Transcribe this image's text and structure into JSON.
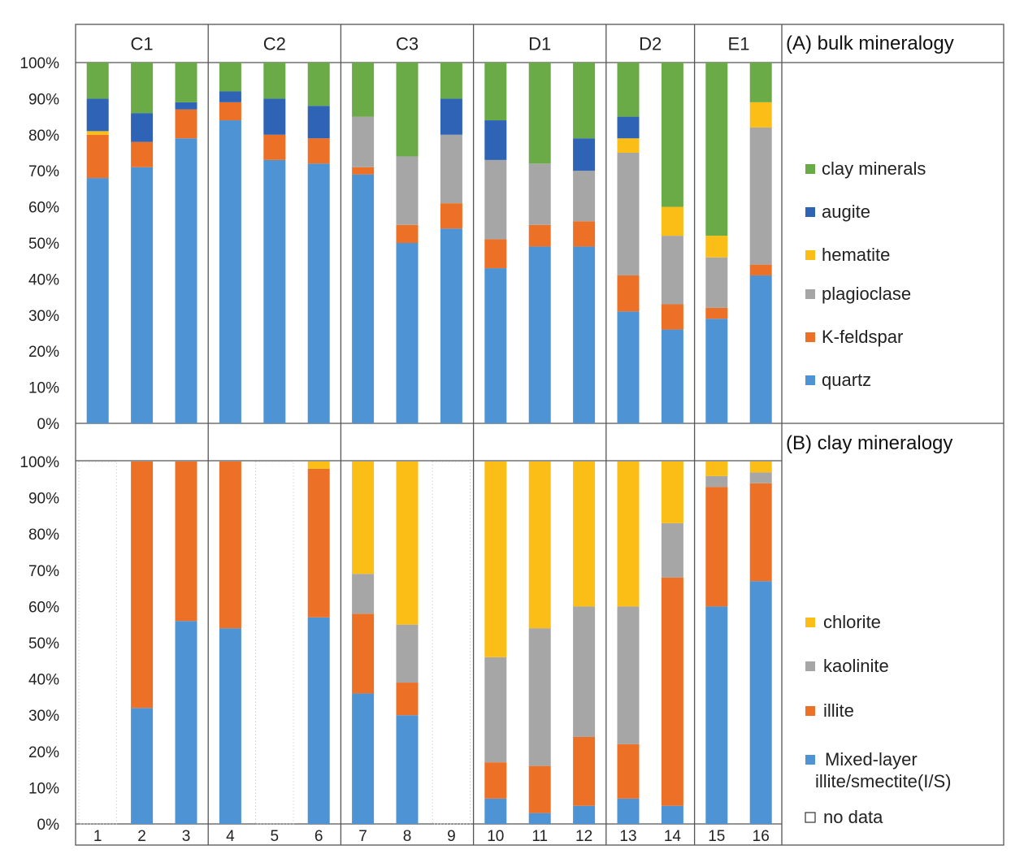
{
  "chart_data": [
    {
      "type": "bar",
      "stacked": true,
      "title": "(A) bulk mineralogy",
      "categories": [
        "1",
        "2",
        "3",
        "4",
        "5",
        "6",
        "7",
        "8",
        "9",
        "10",
        "11",
        "12",
        "13",
        "14",
        "15",
        "16"
      ],
      "groups": [
        {
          "label": "C1",
          "samples": [
            1,
            2,
            3
          ]
        },
        {
          "label": "C2",
          "samples": [
            4,
            5,
            6
          ]
        },
        {
          "label": "C3",
          "samples": [
            7,
            8,
            9
          ]
        },
        {
          "label": "D1",
          "samples": [
            10,
            11,
            12
          ]
        },
        {
          "label": "D2",
          "samples": [
            13,
            14
          ]
        },
        {
          "label": "E1",
          "samples": [
            15,
            16
          ]
        }
      ],
      "ylim": [
        0,
        100
      ],
      "yticks": [
        "0%",
        "10%",
        "20%",
        "30%",
        "40%",
        "50%",
        "60%",
        "70%",
        "80%",
        "90%",
        "100%"
      ],
      "series": [
        {
          "name": "quartz",
          "color": "#4e94d4",
          "values": [
            68,
            71,
            79,
            84,
            73,
            72,
            69,
            50,
            54,
            43,
            49,
            49,
            31,
            26,
            29,
            41
          ]
        },
        {
          "name": "K-feldspar",
          "color": "#ed7027",
          "values": [
            12,
            7,
            8,
            5,
            7,
            7,
            2,
            5,
            7,
            8,
            6,
            7,
            10,
            7,
            3,
            3
          ]
        },
        {
          "name": "plagioclase",
          "color": "#a6a6a6",
          "values": [
            0,
            0,
            0,
            0,
            0,
            0,
            14,
            19,
            19,
            22,
            17,
            14,
            34,
            19,
            14,
            38
          ]
        },
        {
          "name": "hematite",
          "color": "#fbbe17",
          "values": [
            1,
            0,
            0,
            0,
            0,
            0,
            0,
            0,
            0,
            0,
            0,
            0,
            4,
            8,
            6,
            7
          ]
        },
        {
          "name": "augite",
          "color": "#2e63b5",
          "values": [
            9,
            8,
            2,
            3,
            10,
            9,
            0,
            0,
            10,
            11,
            0,
            9,
            6,
            0,
            0,
            0
          ]
        },
        {
          "name": "clay minerals",
          "color": "#6aab47",
          "values": [
            10,
            14,
            11,
            8,
            10,
            12,
            15,
            26,
            10,
            16,
            28,
            21,
            15,
            40,
            48,
            11
          ]
        }
      ],
      "legend": [
        "clay minerals",
        "augite",
        "hematite",
        "plagioclase",
        "K-feldspar",
        "quartz"
      ],
      "legend_position": "right"
    },
    {
      "type": "bar",
      "stacked": true,
      "title": "(B) clay mineralogy",
      "categories": [
        "1",
        "2",
        "3",
        "4",
        "5",
        "6",
        "7",
        "8",
        "9",
        "10",
        "11",
        "12",
        "13",
        "14",
        "15",
        "16"
      ],
      "ylim": [
        0,
        100
      ],
      "yticks": [
        "0%",
        "10%",
        "20%",
        "30%",
        "40%",
        "50%",
        "60%",
        "70%",
        "80%",
        "90%",
        "100%"
      ],
      "no_data_samples": [
        1,
        5,
        9
      ],
      "no_data_label": "no data",
      "series": [
        {
          "name": "Mixed-layer illite/smectite(I/S)",
          "color": "#4e94d4",
          "values": [
            0,
            32,
            56,
            54,
            0,
            57,
            36,
            30,
            0,
            7,
            3,
            5,
            7,
            5,
            60,
            67
          ]
        },
        {
          "name": "illite",
          "color": "#ed7027",
          "values": [
            0,
            68,
            44,
            46,
            0,
            41,
            22,
            9,
            0,
            10,
            13,
            19,
            15,
            63,
            33,
            27
          ]
        },
        {
          "name": "kaolinite",
          "color": "#a6a6a6",
          "values": [
            0,
            0,
            0,
            0,
            0,
            0,
            11,
            16,
            0,
            29,
            38,
            36,
            38,
            15,
            3,
            3
          ]
        },
        {
          "name": "chlorite",
          "color": "#fbbe17",
          "values": [
            0,
            0,
            0,
            0,
            0,
            2,
            31,
            45,
            0,
            54,
            46,
            40,
            40,
            17,
            4,
            3
          ]
        }
      ],
      "legend": [
        "chlorite",
        "kaolinite",
        "illite",
        "Mixed-layer illite/smectite(I/S)",
        "no data"
      ],
      "legend_position": "right"
    }
  ]
}
